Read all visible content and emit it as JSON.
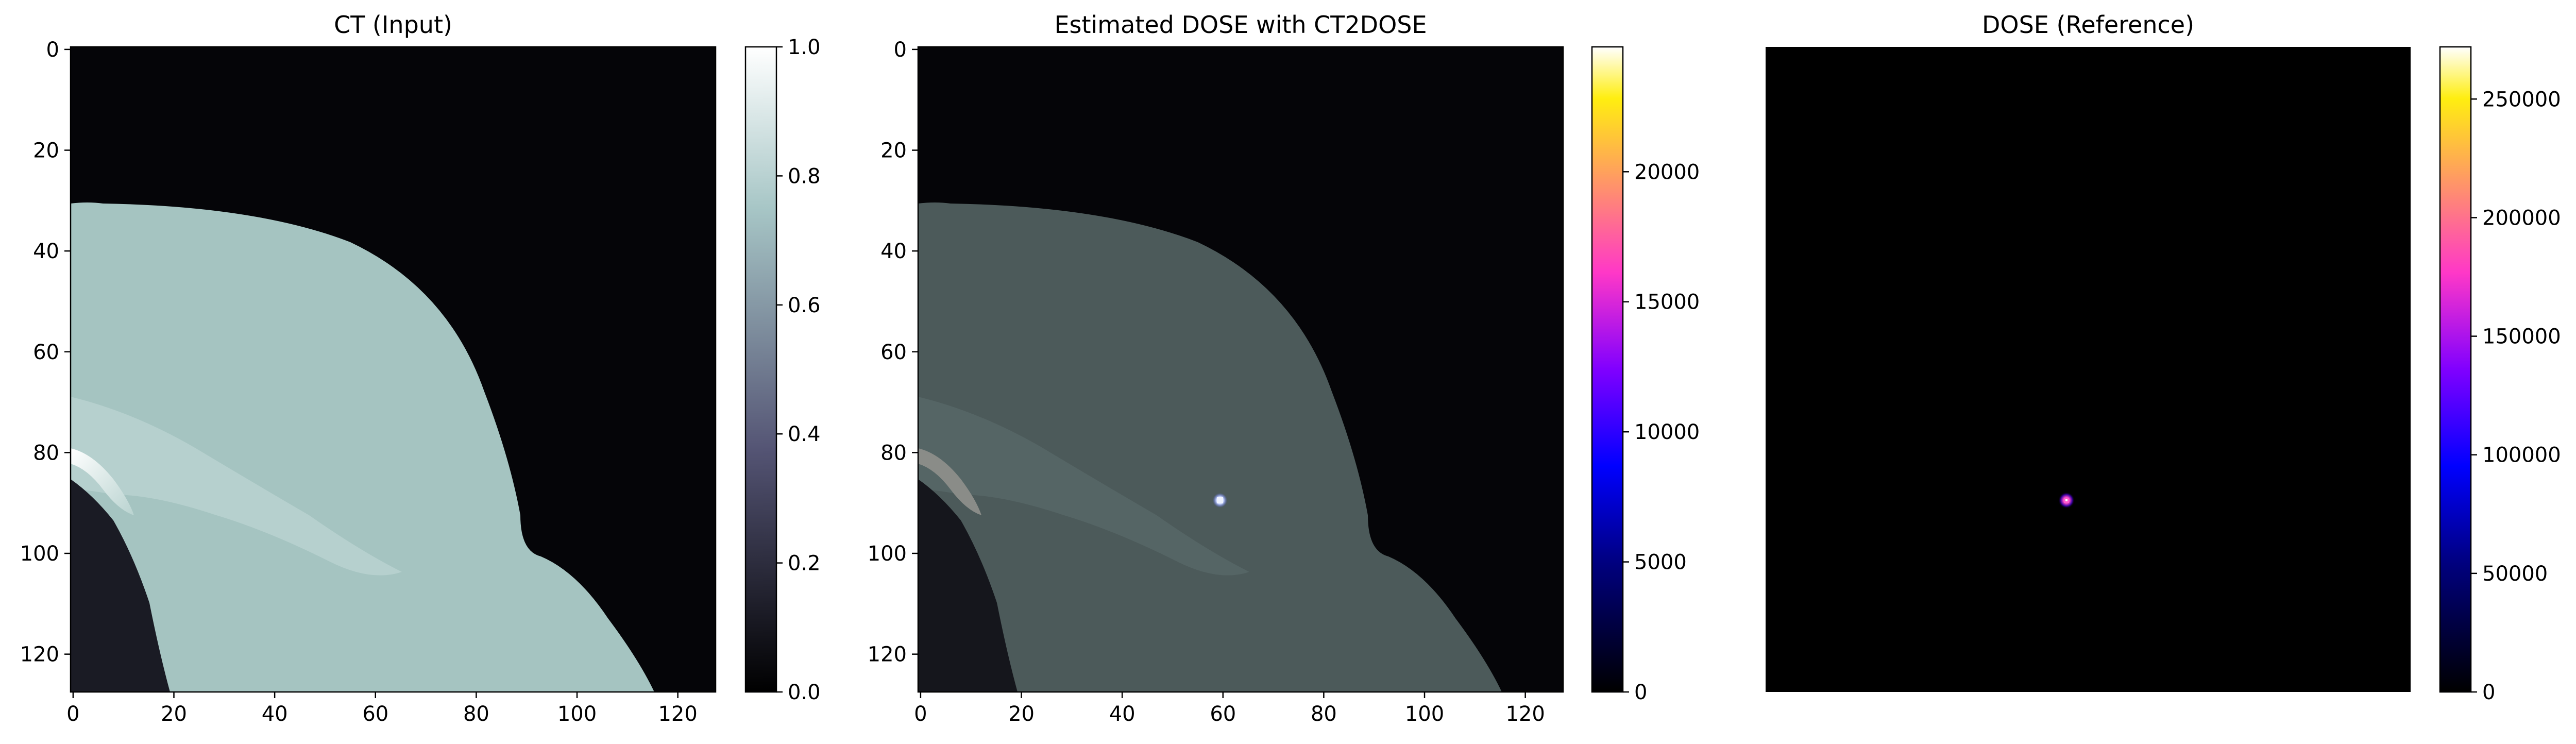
{
  "panels": [
    {
      "title": "CT (Input)",
      "x_ticks": [
        "0",
        "20",
        "40",
        "60",
        "80",
        "100",
        "120"
      ],
      "y_ticks": [
        "0",
        "20",
        "40",
        "60",
        "80",
        "100",
        "120"
      ],
      "colorbar": {
        "ticks": [
          "0.0",
          "0.2",
          "0.4",
          "0.6",
          "0.8",
          "1.0"
        ],
        "tick_values": [
          0,
          0.2,
          0.4,
          0.6,
          0.8,
          1.0
        ],
        "range": [
          0,
          1.0
        ],
        "colormap": "bone"
      }
    },
    {
      "title": "Estimated DOSE with CT2DOSE",
      "x_ticks": [
        "0",
        "20",
        "40",
        "60",
        "80",
        "100",
        "120"
      ],
      "y_ticks": [
        "0",
        "20",
        "40",
        "60",
        "80",
        "100",
        "120"
      ],
      "colorbar": {
        "ticks": [
          "0",
          "5000",
          "10000",
          "15000",
          "20000"
        ],
        "tick_values": [
          0,
          5000,
          10000,
          15000,
          20000
        ],
        "range": [
          0,
          24800
        ],
        "colormap": "gnuplot2"
      }
    },
    {
      "title": "DOSE (Reference)",
      "x_ticks": [],
      "y_ticks": [],
      "colorbar": {
        "ticks": [
          "0",
          "50000",
          "100000",
          "150000",
          "200000",
          "250000"
        ],
        "tick_values": [
          0,
          50000,
          100000,
          150000,
          200000,
          250000
        ],
        "range": [
          0,
          272000
        ],
        "colormap": "gnuplot2"
      }
    }
  ],
  "colors": {
    "background": "#000000",
    "ct_soft_tissue": "#a7c6c2",
    "ct_dark": "#050508",
    "dose_spot": "#e8f0ff",
    "dose_ref_spot": "#ff4fc8"
  }
}
